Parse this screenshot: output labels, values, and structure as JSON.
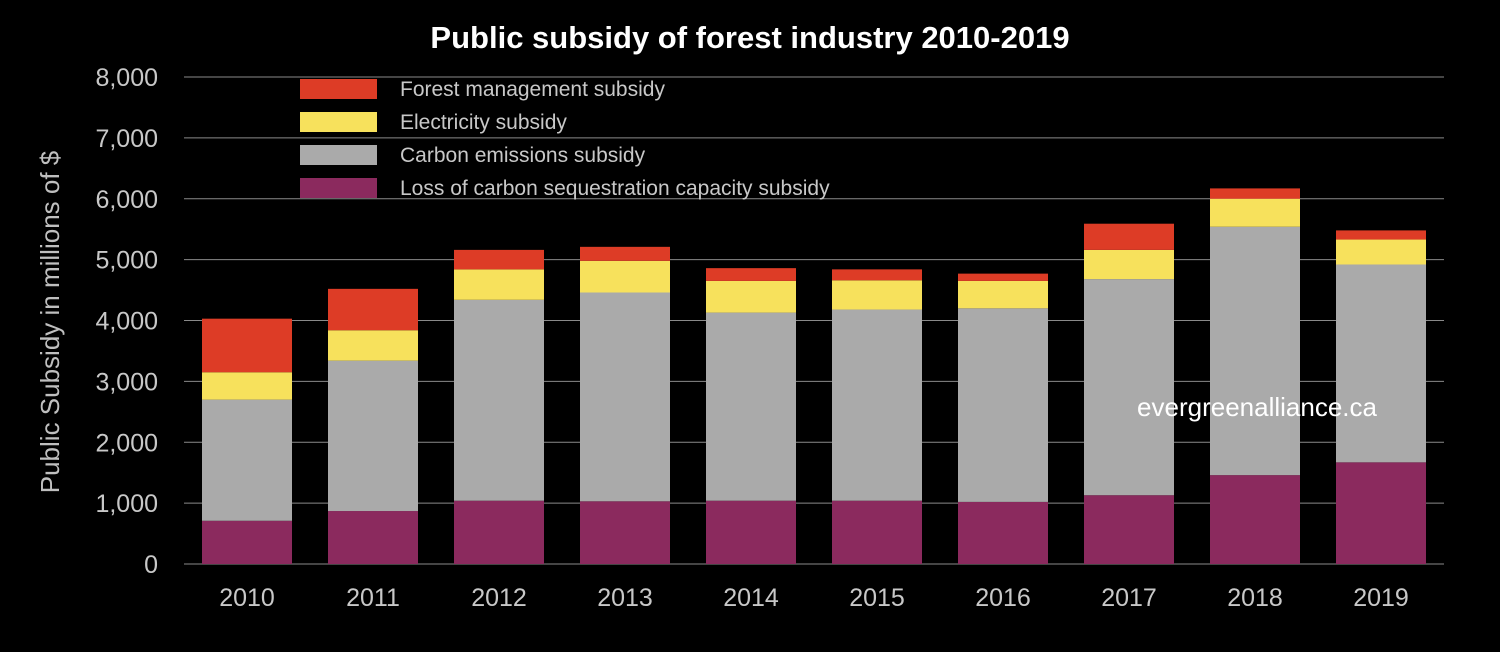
{
  "chart_data": {
    "type": "bar",
    "stacked": true,
    "title": "Public subsidy of forest industry 2010-2019",
    "xlabel": "",
    "ylabel": "Public Subsidy in millions of $",
    "ylim": [
      0,
      8000
    ],
    "yticks": [
      0,
      1000,
      2000,
      3000,
      4000,
      5000,
      6000,
      7000,
      8000
    ],
    "ytick_labels": [
      "0",
      "1,000",
      "2,000",
      "3,000",
      "4,000",
      "5,000",
      "6,000",
      "7,000",
      "8,000"
    ],
    "grid": true,
    "legend_position": "top-left",
    "categories": [
      "2010",
      "2011",
      "2012",
      "2013",
      "2014",
      "2015",
      "2016",
      "2017",
      "2018",
      "2019"
    ],
    "series": [
      {
        "name": "Loss of carbon sequestration capacity subsidy",
        "color": "#8b2a5e",
        "values": [
          710,
          870,
          1040,
          1030,
          1040,
          1040,
          1020,
          1130,
          1460,
          1670
        ]
      },
      {
        "name": "Carbon emissions subsidy",
        "color": "#aaaaaa",
        "values": [
          1990,
          2470,
          3300,
          3430,
          3090,
          3140,
          3180,
          3550,
          4080,
          3250
        ]
      },
      {
        "name": "Electricity subsidy",
        "color": "#f7e15c",
        "values": [
          450,
          500,
          500,
          520,
          520,
          480,
          450,
          480,
          460,
          410
        ]
      },
      {
        "name": "Forest management subsidy",
        "color": "#dd3c26",
        "values": [
          880,
          680,
          320,
          230,
          210,
          180,
          120,
          430,
          170,
          150
        ]
      }
    ],
    "legend_order": [
      3,
      2,
      1,
      0
    ],
    "annotations": [
      "evergreenalliance.ca"
    ]
  },
  "colors": {
    "background": "#000000",
    "gridline": "#8a8a8a",
    "title": "#ffffff",
    "axis_text": "#c8c8c8"
  }
}
